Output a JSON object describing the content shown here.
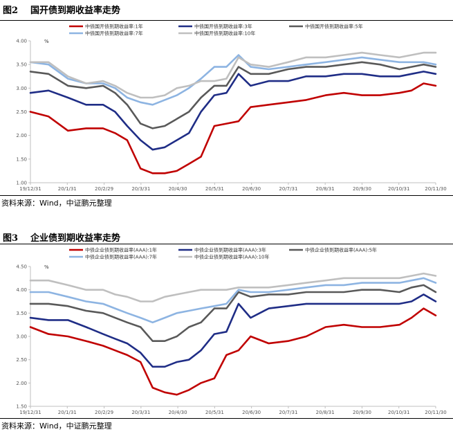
{
  "figure1": {
    "label": "图2",
    "title": "国开债到期收益率走势",
    "source": "资料来源：Wind，中证鹏元整理",
    "chart_data": {
      "type": "line",
      "unit": "%",
      "ylim": [
        1.0,
        4.0
      ],
      "y_ticks": [
        "1.00",
        "1.50",
        "2.00",
        "2.50",
        "3.00",
        "3.50",
        "4.00"
      ],
      "x_ticks": [
        "19/12/31",
        "20/1/31",
        "20/2/29",
        "20/3/31",
        "20/4/30",
        "20/5/31",
        "20/6/30",
        "20/7/31",
        "20/8/31",
        "20/9/30",
        "20/10/31",
        "20/11/30"
      ],
      "x": [
        "2019-12-31",
        "2020-01-15",
        "2020-01-31",
        "2020-02-15",
        "2020-02-29",
        "2020-03-10",
        "2020-03-20",
        "2020-03-31",
        "2020-04-10",
        "2020-04-20",
        "2020-04-30",
        "2020-05-10",
        "2020-05-20",
        "2020-05-31",
        "2020-06-10",
        "2020-06-20",
        "2020-06-30",
        "2020-07-15",
        "2020-07-31",
        "2020-08-15",
        "2020-08-31",
        "2020-09-15",
        "2020-09-30",
        "2020-10-15",
        "2020-10-31",
        "2020-11-10",
        "2020-11-20",
        "2020-11-30"
      ],
      "series": [
        {
          "name": "中债国开债到期收益率:1年",
          "color": "#c00000",
          "values": [
            2.5,
            2.4,
            2.1,
            2.15,
            2.15,
            2.05,
            1.9,
            1.3,
            1.2,
            1.2,
            1.25,
            1.4,
            1.55,
            2.2,
            2.25,
            2.3,
            2.6,
            2.65,
            2.7,
            2.75,
            2.85,
            2.9,
            2.85,
            2.85,
            2.9,
            2.95,
            3.1,
            3.05
          ]
        },
        {
          "name": "中债国开债到期收益率:3年",
          "color": "#1f2d86",
          "values": [
            2.9,
            2.95,
            2.8,
            2.65,
            2.65,
            2.5,
            2.2,
            1.9,
            1.7,
            1.75,
            1.9,
            2.05,
            2.5,
            2.85,
            2.9,
            3.3,
            3.05,
            3.15,
            3.15,
            3.25,
            3.25,
            3.3,
            3.3,
            3.25,
            3.25,
            3.3,
            3.35,
            3.3
          ]
        },
        {
          "name": "中债国开债到期收益率:5年",
          "color": "#595959",
          "values": [
            3.35,
            3.3,
            3.05,
            3.0,
            3.05,
            2.9,
            2.65,
            2.25,
            2.15,
            2.2,
            2.35,
            2.5,
            2.8,
            3.05,
            3.05,
            3.45,
            3.3,
            3.3,
            3.4,
            3.45,
            3.45,
            3.5,
            3.55,
            3.5,
            3.4,
            3.45,
            3.5,
            3.45
          ]
        },
        {
          "name": "中债国开债到期收益率:7年",
          "color": "#8db4e2",
          "values": [
            3.55,
            3.5,
            3.2,
            3.1,
            3.1,
            3.0,
            2.8,
            2.7,
            2.65,
            2.75,
            2.85,
            3.0,
            3.2,
            3.45,
            3.45,
            3.7,
            3.45,
            3.4,
            3.45,
            3.5,
            3.55,
            3.6,
            3.65,
            3.6,
            3.55,
            3.55,
            3.55,
            3.5
          ]
        },
        {
          "name": "中债国开债到期收益率:10年",
          "color": "#bfbfbf",
          "values": [
            3.55,
            3.55,
            3.25,
            3.1,
            3.15,
            3.05,
            2.9,
            2.8,
            2.8,
            2.85,
            3.0,
            3.05,
            3.15,
            3.15,
            3.2,
            3.65,
            3.5,
            3.45,
            3.55,
            3.65,
            3.65,
            3.7,
            3.75,
            3.7,
            3.65,
            3.7,
            3.75,
            3.75
          ]
        }
      ]
    }
  },
  "figure2": {
    "label": "图3",
    "title": "企业债到期收益率走势",
    "source": "资料来源：Wind，中证鹏元整理",
    "chart_data": {
      "type": "line",
      "unit": "%",
      "ylim": [
        1.5,
        4.5
      ],
      "y_ticks": [
        "1.50",
        "2.00",
        "2.50",
        "3.00",
        "3.50",
        "4.00",
        "4.50"
      ],
      "x_ticks": [
        "19/12/31",
        "20/1/31",
        "20/2/29",
        "20/3/31",
        "20/4/30",
        "20/5/31",
        "20/6/30",
        "20/7/31",
        "20/8/31",
        "20/9/30",
        "20/10/31",
        "20/11/30"
      ],
      "x": [
        "2019-12-31",
        "2020-01-15",
        "2020-01-31",
        "2020-02-15",
        "2020-02-29",
        "2020-03-10",
        "2020-03-20",
        "2020-03-31",
        "2020-04-10",
        "2020-04-20",
        "2020-04-30",
        "2020-05-10",
        "2020-05-20",
        "2020-05-31",
        "2020-06-10",
        "2020-06-20",
        "2020-06-30",
        "2020-07-15",
        "2020-07-31",
        "2020-08-15",
        "2020-08-31",
        "2020-09-15",
        "2020-09-30",
        "2020-10-15",
        "2020-10-31",
        "2020-11-10",
        "2020-11-20",
        "2020-11-30"
      ],
      "series": [
        {
          "name": "中债企业债到期收益率(AAA):1年",
          "color": "#c00000",
          "values": [
            3.2,
            3.05,
            3.0,
            2.9,
            2.8,
            2.7,
            2.6,
            2.45,
            1.9,
            1.8,
            1.75,
            1.85,
            2.0,
            2.1,
            2.6,
            2.7,
            3.0,
            2.85,
            2.9,
            3.0,
            3.2,
            3.25,
            3.2,
            3.2,
            3.25,
            3.4,
            3.6,
            3.45
          ]
        },
        {
          "name": "中债企业债到期收益率(AAA):3年",
          "color": "#1f2d86",
          "values": [
            3.4,
            3.35,
            3.35,
            3.2,
            3.05,
            2.95,
            2.85,
            2.65,
            2.35,
            2.35,
            2.45,
            2.5,
            2.7,
            3.05,
            3.1,
            3.7,
            3.4,
            3.6,
            3.65,
            3.7,
            3.7,
            3.7,
            3.7,
            3.7,
            3.7,
            3.75,
            3.9,
            3.75
          ]
        },
        {
          "name": "中债企业债到期收益率(AAA):5年",
          "color": "#595959",
          "values": [
            3.7,
            3.7,
            3.65,
            3.55,
            3.5,
            3.4,
            3.3,
            3.2,
            2.9,
            2.9,
            3.0,
            3.2,
            3.3,
            3.6,
            3.6,
            3.95,
            3.85,
            3.9,
            3.9,
            3.95,
            3.95,
            3.95,
            4.0,
            4.0,
            3.95,
            4.05,
            4.1,
            3.95
          ]
        },
        {
          "name": "中债企业债到期收益率(AAA):7年",
          "color": "#8db4e2",
          "values": [
            3.95,
            3.95,
            3.85,
            3.75,
            3.7,
            3.6,
            3.5,
            3.4,
            3.3,
            3.4,
            3.5,
            3.55,
            3.6,
            3.65,
            3.7,
            4.0,
            3.95,
            3.95,
            4.0,
            4.05,
            4.1,
            4.1,
            4.15,
            4.15,
            4.15,
            4.2,
            4.25,
            4.15
          ]
        },
        {
          "name": "中债企业债到期收益率(AAA):10年",
          "color": "#bfbfbf",
          "values": [
            4.2,
            4.2,
            4.1,
            4.0,
            4.0,
            3.9,
            3.85,
            3.75,
            3.75,
            3.85,
            3.9,
            3.95,
            4.0,
            4.0,
            4.0,
            4.05,
            4.05,
            4.05,
            4.1,
            4.15,
            4.2,
            4.25,
            4.25,
            4.25,
            4.25,
            4.3,
            4.35,
            4.3
          ]
        }
      ]
    }
  }
}
